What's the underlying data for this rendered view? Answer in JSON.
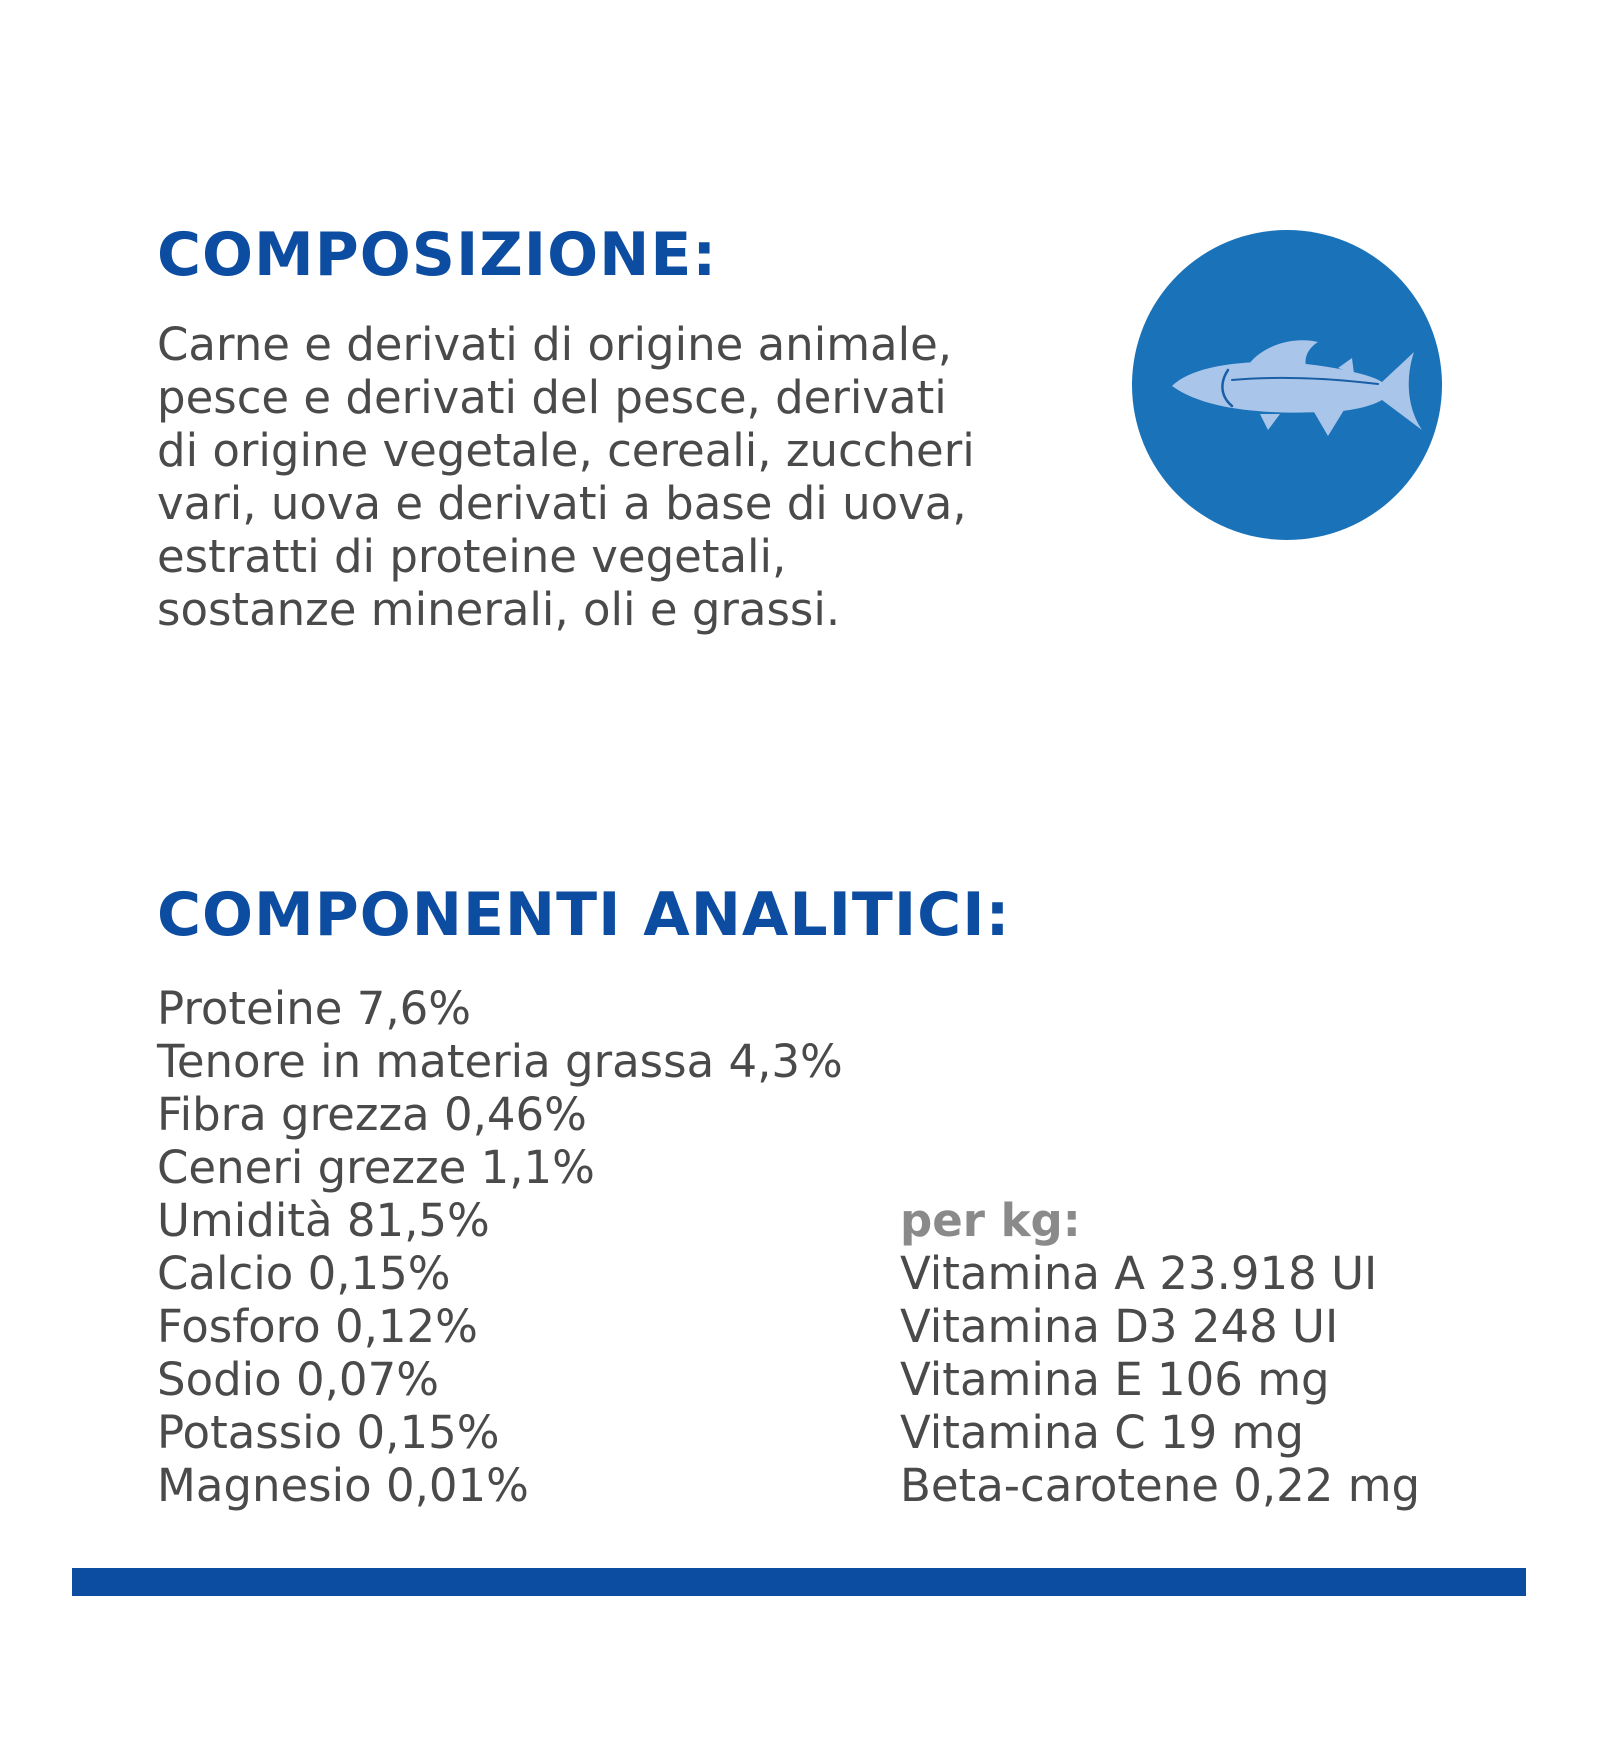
{
  "composition": {
    "heading": "COMPOSIZIONE:",
    "lines": [
      "Carne e derivati di origine animale,",
      "pesce e derivati del pesce, derivati",
      "di origine vegetale, cereali, zuccheri",
      "vari, uova e derivati a base di uova,",
      "estratti di proteine vegetali,",
      "sostanze minerali, oli e grassi."
    ],
    "icon": "fish-icon",
    "icon_colors": {
      "circle": "#1a72b9",
      "fish": "#a9c6ea",
      "outline": "#1a5ea6"
    }
  },
  "analytic": {
    "heading": "COMPONENTI ANALITICI:",
    "items": [
      "Proteine 7,6%",
      "Tenore in materia grassa 4,3%",
      "Fibra grezza 0,46%",
      "Ceneri grezze 1,1%",
      "Umidità 81,5%",
      "Calcio 0,15%",
      "Fosforo 0,12%",
      "Sodio 0,07%",
      "Potassio 0,15%",
      "Magnesio 0,01%"
    ],
    "per_kg": {
      "label": "per kg:",
      "items": [
        "Vitamina A 23.918 UI",
        "Vitamina D3 248 UI",
        "Vitamina E 106 mg",
        "Vitamina C 19 mg",
        "Beta-carotene 0,22 mg"
      ]
    }
  },
  "colors": {
    "heading": "#0d4da1",
    "body_text": "#4a4a4a",
    "per_kg_label": "#8a8a8a",
    "bottom_bar": "#0d4da1"
  }
}
